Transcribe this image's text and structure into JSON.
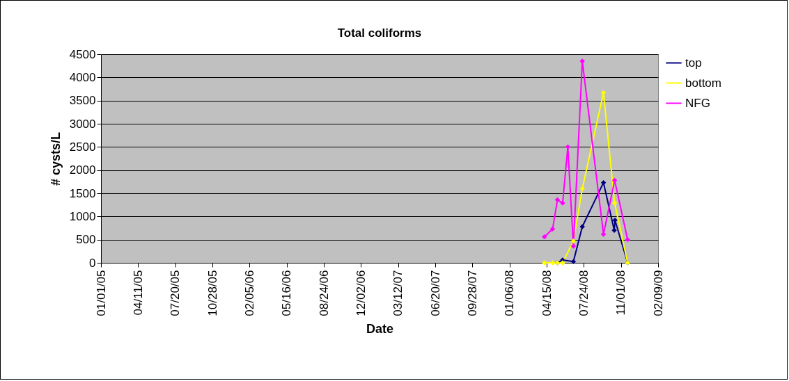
{
  "chart_data": {
    "type": "line",
    "title": "Total coliforms",
    "xlabel": "Date",
    "ylabel": "# cysts/L",
    "xlim": [
      "2005-01-01",
      "2009-02-09"
    ],
    "xticks": [
      {
        "value": "2005-01-01",
        "label": "01/01/05"
      },
      {
        "value": "2005-04-11",
        "label": "04/11/05"
      },
      {
        "value": "2005-07-20",
        "label": "07/20/05"
      },
      {
        "value": "2005-10-28",
        "label": "10/28/05"
      },
      {
        "value": "2006-02-05",
        "label": "02/05/06"
      },
      {
        "value": "2006-05-16",
        "label": "05/16/06"
      },
      {
        "value": "2006-08-24",
        "label": "08/24/06"
      },
      {
        "value": "2006-12-02",
        "label": "12/02/06"
      },
      {
        "value": "2007-03-12",
        "label": "03/12/07"
      },
      {
        "value": "2007-06-20",
        "label": "06/20/07"
      },
      {
        "value": "2007-09-28",
        "label": "09/28/07"
      },
      {
        "value": "2008-01-06",
        "label": "01/06/08"
      },
      {
        "value": "2008-04-15",
        "label": "04/15/08"
      },
      {
        "value": "2008-07-24",
        "label": "07/24/08"
      },
      {
        "value": "2008-11-01",
        "label": "11/01/08"
      },
      {
        "value": "2009-02-09",
        "label": "02/09/09"
      }
    ],
    "ylim": [
      0,
      4500
    ],
    "yticks": [
      0,
      500,
      1000,
      1500,
      2000,
      2500,
      3000,
      3500,
      4000,
      4500
    ],
    "grid": "y",
    "legend": "right",
    "marker": "diamond",
    "series": [
      {
        "name": "top",
        "color": "#000080",
        "x": [
          "2008-05-14",
          "2008-05-28",
          "2008-06-26",
          "2008-07-20",
          "2008-09-15",
          "2008-10-14",
          "2008-10-16",
          "2008-11-19"
        ],
        "values": [
          0,
          60,
          25,
          780,
          1730,
          700,
          920,
          0
        ]
      },
      {
        "name": "bottom",
        "color": "#ffff00",
        "x": [
          "2008-04-09",
          "2008-05-01",
          "2008-05-14",
          "2008-05-28",
          "2008-06-26",
          "2008-07-20",
          "2008-09-15",
          "2008-10-15",
          "2008-11-19"
        ],
        "values": [
          0,
          0,
          0,
          0,
          470,
          1600,
          3670,
          1290,
          0
        ]
      },
      {
        "name": "NFG",
        "color": "#ff00ff",
        "x": [
          "2008-04-09",
          "2008-05-01",
          "2008-05-14",
          "2008-05-28",
          "2008-06-11",
          "2008-06-26",
          "2008-07-20",
          "2008-09-15",
          "2008-10-15",
          "2008-11-19"
        ],
        "values": [
          560,
          730,
          1360,
          1290,
          2500,
          360,
          4350,
          615,
          1780,
          500
        ]
      }
    ]
  }
}
